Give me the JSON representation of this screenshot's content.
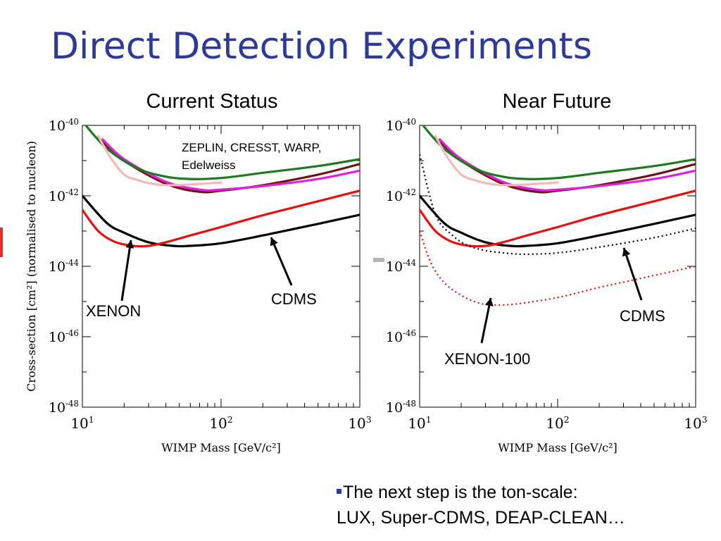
{
  "slide": {
    "title": "Direct Detection Experiments",
    "bullet_text_line1": "The next step is the ton-scale:",
    "bullet_text_line2": "LUX, Super-CDMS, DEAP-CLEAN…"
  },
  "colors": {
    "title": "#2d3a99",
    "zeplin_dark": "#6e1414",
    "magenta": "#e020e0",
    "green": "#1f7a1f",
    "pink_light": "#f5b8b8",
    "cdms": "#000000",
    "xenon": "#e81010"
  },
  "chart_data": [
    {
      "type": "line",
      "title": "Current Status",
      "xlabel": "WIMP Mass [GeV/c²]",
      "ylabel": "Cross-section [cm²] (normalised to nucleon)",
      "x_scale": "log",
      "y_scale": "log",
      "xlim": [
        10,
        1000
      ],
      "ylim": [
        1e-48,
        1e-40
      ],
      "x_ticks": [
        "10¹",
        "10²",
        "10³"
      ],
      "y_ticks": [
        "10⁻⁴⁰",
        "10⁻⁴²",
        "10⁻⁴⁴",
        "10⁻⁴⁶",
        "10⁻⁴⁸"
      ],
      "annotations": [
        "ZEPLIN, CRESST, WARP,",
        "Edelweiss",
        "XENON",
        "CDMS"
      ],
      "series": [
        {
          "key": "zeplin_dark",
          "style": "solid",
          "x": [
            13,
            20,
            40,
            70,
            100,
            200,
            500,
            1000
          ],
          "y": [
            4.5e-41,
            1e-41,
            2.2e-42,
            1.3e-42,
            1.4e-42,
            2e-42,
            4e-42,
            8e-42
          ]
        },
        {
          "key": "magenta",
          "style": "solid",
          "x": [
            14,
            20,
            40,
            70,
            100,
            200,
            500,
            1000
          ],
          "y": [
            4e-41,
            1.1e-41,
            2.5e-42,
            1.5e-42,
            1.5e-42,
            1.9e-42,
            3e-42,
            5.2e-42
          ]
        },
        {
          "key": "green",
          "style": "solid",
          "x": [
            10,
            15,
            25,
            40,
            60,
            100,
            200,
            500,
            1000
          ],
          "y": [
            1.3e-40,
            2.2e-41,
            6e-42,
            3.5e-42,
            3e-42,
            3.2e-42,
            4.5e-42,
            7e-42,
            1.1e-41
          ]
        },
        {
          "key": "pink_light",
          "style": "solid",
          "x": [
            13,
            16,
            20,
            25,
            30,
            40,
            60,
            100
          ],
          "y": [
            5e-41,
            1.2e-41,
            4e-42,
            2.8e-42,
            2.3e-42,
            2e-42,
            2.1e-42,
            2.4e-42
          ]
        },
        {
          "key": "cdms",
          "style": "solid",
          "x": [
            10,
            15,
            20,
            30,
            45,
            60,
            100,
            200,
            500,
            1000
          ],
          "y": [
            1e-42,
            1.7e-43,
            9e-44,
            4.8e-44,
            3.8e-44,
            3.8e-44,
            4.5e-44,
            7.5e-44,
            1.6e-43,
            2.9e-43
          ]
        },
        {
          "key": "xenon",
          "style": "solid",
          "x": [
            10,
            13,
            17,
            23,
            30,
            40,
            60,
            100,
            200,
            500,
            1000
          ],
          "y": [
            4e-43,
            1e-43,
            5e-44,
            3.8e-44,
            3.8e-44,
            4.8e-44,
            7.5e-44,
            1.3e-43,
            2.8e-43,
            7e-43,
            1.4e-42
          ]
        }
      ]
    },
    {
      "type": "line",
      "title": "Near Future",
      "xlabel": "WIMP Mass [GeV/c²]",
      "ylabel": "",
      "x_scale": "log",
      "y_scale": "log",
      "xlim": [
        10,
        1000
      ],
      "ylim": [
        1e-48,
        1e-40
      ],
      "x_ticks": [
        "10¹",
        "10²",
        "10³"
      ],
      "y_ticks": [
        "10⁻⁴⁰",
        "10⁻⁴²",
        "10⁻⁴⁴",
        "10⁻⁴⁶",
        "10⁻⁴⁸"
      ],
      "annotations": [
        "CDMS",
        "XENON-100"
      ],
      "series": [
        {
          "key": "zeplin_dark",
          "style": "solid",
          "x": [
            13,
            20,
            40,
            70,
            100,
            200,
            500,
            1000
          ],
          "y": [
            4.5e-41,
            1e-41,
            2.2e-42,
            1.3e-42,
            1.4e-42,
            2e-42,
            4e-42,
            8e-42
          ]
        },
        {
          "key": "magenta",
          "style": "solid",
          "x": [
            14,
            20,
            40,
            70,
            100,
            200,
            500,
            1000
          ],
          "y": [
            4e-41,
            1.1e-41,
            2.5e-42,
            1.5e-42,
            1.5e-42,
            1.9e-42,
            3e-42,
            5.2e-42
          ]
        },
        {
          "key": "green",
          "style": "solid",
          "x": [
            10,
            15,
            25,
            40,
            60,
            100,
            200,
            500,
            1000
          ],
          "y": [
            1.3e-40,
            2.2e-41,
            6e-42,
            3.5e-42,
            3e-42,
            3.2e-42,
            4.5e-42,
            7e-42,
            1.1e-41
          ]
        },
        {
          "key": "pink_light",
          "style": "solid",
          "x": [
            13,
            16,
            20,
            25,
            30,
            40,
            60,
            100
          ],
          "y": [
            5e-41,
            1.2e-41,
            4e-42,
            2.8e-42,
            2.3e-42,
            2e-42,
            2.1e-42,
            2.4e-42
          ]
        },
        {
          "key": "cdms",
          "style": "solid",
          "x": [
            10,
            15,
            20,
            30,
            45,
            60,
            100,
            200,
            500,
            1000
          ],
          "y": [
            1e-42,
            1.7e-43,
            9e-44,
            4.8e-44,
            3.8e-44,
            3.8e-44,
            4.5e-44,
            7.5e-44,
            1.6e-43,
            2.9e-43
          ]
        },
        {
          "key": "xenon",
          "style": "solid",
          "x": [
            10,
            13,
            17,
            23,
            30,
            40,
            60,
            100,
            200,
            500,
            1000
          ],
          "y": [
            4e-43,
            1e-43,
            5e-44,
            3.8e-44,
            3.8e-44,
            4.8e-44,
            7.5e-44,
            1.3e-43,
            2.8e-43,
            7e-43,
            1.4e-42
          ]
        },
        {
          "key": "cdms",
          "style": "dotted",
          "x": [
            10,
            13,
            17,
            22,
            30,
            45,
            60,
            100,
            200,
            500,
            1000
          ],
          "y": [
            1.5e-41,
            3e-43,
            8e-44,
            4e-44,
            2.8e-44,
            2.3e-44,
            2.2e-44,
            2.4e-44,
            3.5e-44,
            6.5e-44,
            1.2e-43
          ]
        },
        {
          "key": "xenon",
          "style": "dotted",
          "x": [
            10,
            12,
            15,
            20,
            27,
            35,
            50,
            100,
            200,
            500,
            1000
          ],
          "y": [
            1e-43,
            1.3e-44,
            3.5e-45,
            1.5e-45,
            9e-46,
            8e-46,
            8.5e-46,
            1.3e-45,
            2.5e-45,
            5.5e-45,
            1e-44
          ]
        }
      ]
    }
  ]
}
